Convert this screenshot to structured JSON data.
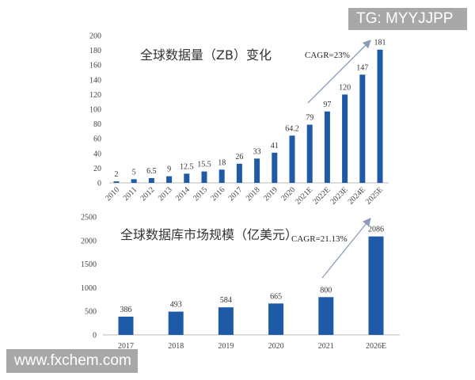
{
  "watermarks": {
    "top": "TG: MYYJJPP",
    "bottom": "www.fxchem.com"
  },
  "chart_data": [
    {
      "type": "bar",
      "title": "全球数据量（ZB）变化",
      "annotation": "CAGR=23%",
      "categories": [
        "2010",
        "2011",
        "2012",
        "2013",
        "2014",
        "2015",
        "2016",
        "2017",
        "2018",
        "2019",
        "2020",
        "2021E",
        "2022E",
        "2023E",
        "2024E",
        "2025E"
      ],
      "values": [
        2,
        5,
        6.5,
        9,
        12.5,
        15.5,
        18,
        26,
        33,
        41,
        64.2,
        79,
        97,
        120,
        147,
        181
      ],
      "data_labels": [
        "2",
        "5",
        "6.5",
        "9",
        "12.5",
        "15.5",
        "18",
        "26",
        "33",
        "41",
        "64.2",
        "79",
        "97",
        "120",
        "147",
        "181"
      ],
      "ylim": [
        0,
        200
      ],
      "yticks": [
        0,
        20,
        40,
        60,
        80,
        100,
        120,
        140,
        160,
        180,
        200
      ],
      "grid": false,
      "color": "#1f5aa6"
    },
    {
      "type": "bar",
      "title": "全球数据库市场规模（亿美元）",
      "annotation": "CAGR=21.13%",
      "categories": [
        "2017",
        "2018",
        "2019",
        "2020",
        "2021",
        "2026E"
      ],
      "values": [
        386,
        493,
        584,
        665,
        800,
        2086
      ],
      "data_labels": [
        "386",
        "493",
        "584",
        "665",
        "800",
        "2086"
      ],
      "ylim": [
        0,
        2500
      ],
      "yticks": [
        0,
        500,
        1000,
        1500,
        2000,
        2500
      ],
      "grid": false,
      "color": "#1f5aa6"
    }
  ]
}
